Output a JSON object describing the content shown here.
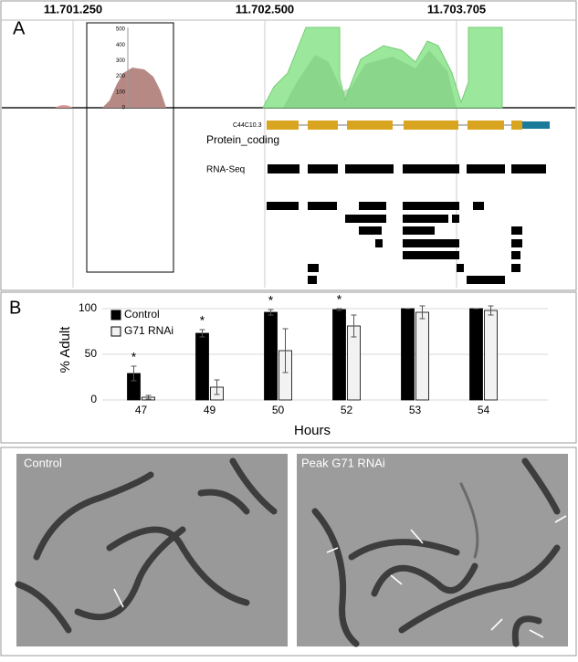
{
  "panel_a": {
    "label": "A",
    "coordinates": [
      "11.701.250",
      "11.702.500",
      "11.703.705"
    ],
    "coverage_ticks": [
      500,
      400,
      300,
      200,
      100,
      0
    ],
    "gene_id": "C44C10.3",
    "gene_type": "Protein_coding",
    "track": "RNA-Seq"
  },
  "chart_data": {
    "type": "bar",
    "label": "B",
    "xlabel": "Hours",
    "ylabel": "% Adult",
    "categories": [
      "47",
      "49",
      "50",
      "52",
      "53",
      "54"
    ],
    "series": [
      {
        "name": "Control",
        "color": "#000000",
        "values": [
          29,
          73,
          96,
          99,
          100,
          100
        ],
        "errors": [
          8,
          4,
          3,
          1,
          0,
          0
        ]
      },
      {
        "name": "G71 RNAi",
        "color": "#f2f2f2",
        "values": [
          3,
          14,
          54,
          81,
          96,
          98
        ],
        "errors": [
          2,
          8,
          24,
          12,
          7,
          5
        ]
      }
    ],
    "significance": [
      "*",
      "*",
      "*",
      "*",
      null,
      null
    ],
    "ylim": [
      0,
      110
    ],
    "yticks": [
      0,
      50,
      100
    ],
    "grid": true,
    "legend": "top-left"
  },
  "panel_c": {
    "left_title": "Control",
    "right_title": "Peak G71 RNAi"
  }
}
